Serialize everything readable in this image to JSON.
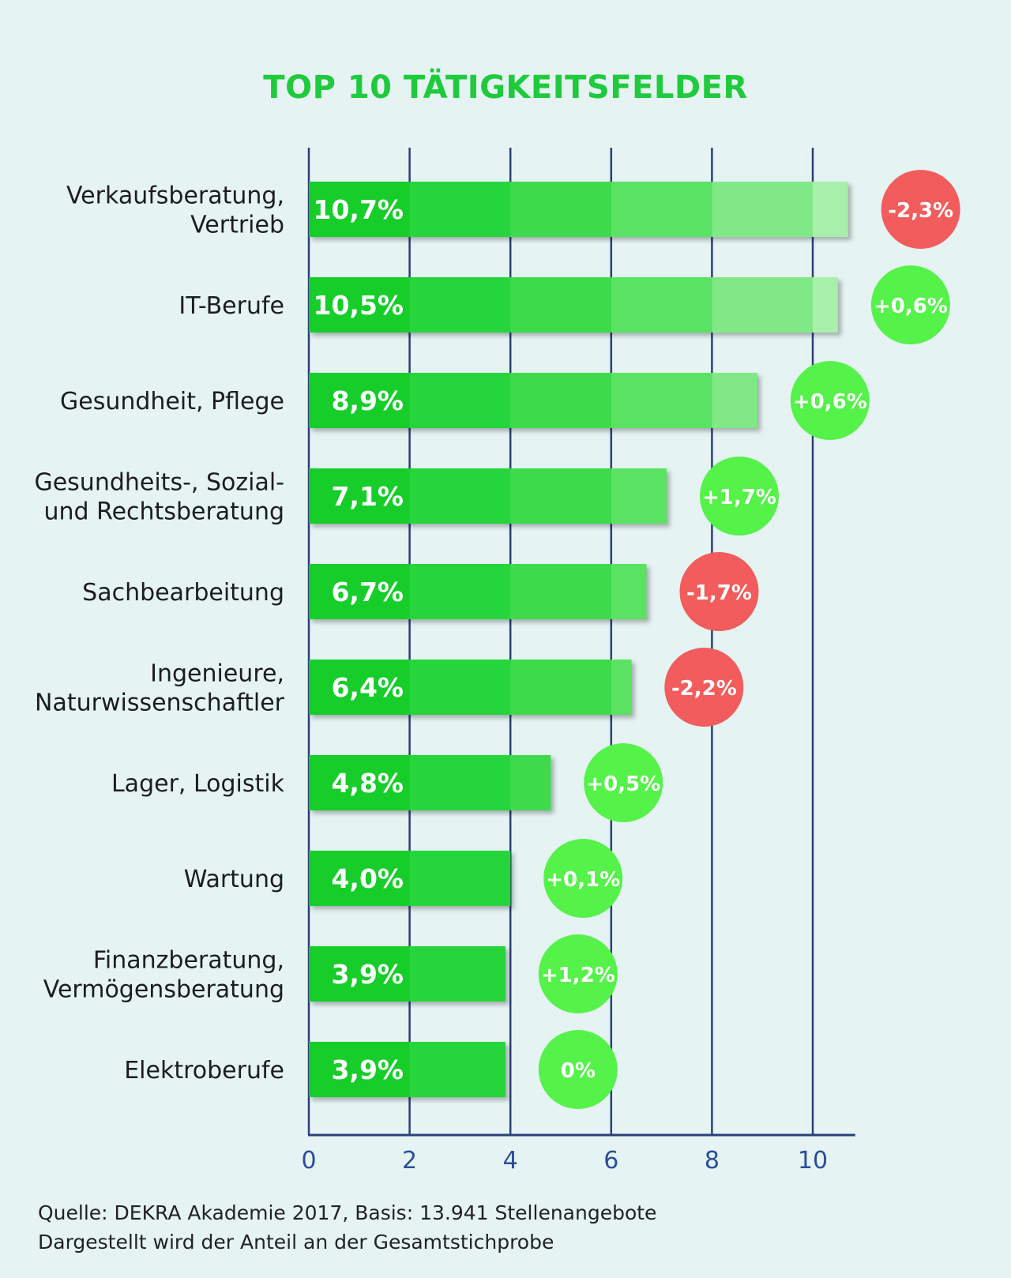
{
  "chart_data": {
    "type": "bar",
    "orientation": "horizontal",
    "title": "TOP 10 TÄTIGKEITSFELDER",
    "categories": [
      [
        "Verkaufsberatung,",
        "Vertrieb"
      ],
      [
        "IT-Berufe"
      ],
      [
        "Gesundheit, Pflege"
      ],
      [
        "Gesundheits-, Sozial-",
        "und Rechtsberatung"
      ],
      [
        "Sachbearbeitung"
      ],
      [
        "Ingenieure,",
        "Naturwissenschaftler"
      ],
      [
        "Lager, Logistik"
      ],
      [
        "Wartung"
      ],
      [
        "Finanzberatung,",
        "Vermögensberatung"
      ],
      [
        "Elektroberufe"
      ]
    ],
    "values": [
      10.7,
      10.5,
      8.9,
      7.1,
      6.7,
      6.4,
      4.8,
      4.0,
      3.9,
      3.9
    ],
    "value_labels": [
      "10,7%",
      "10,5%",
      "8,9%",
      "7,1%",
      "6,7%",
      "6,4%",
      "4,8%",
      "4,0%",
      "3,9%",
      "3,9%"
    ],
    "change_labels": [
      "-2,3%",
      "+0,6%",
      "+0,6%",
      "+1,7%",
      "-1,7%",
      "-2,2%",
      "+0,5%",
      "+0,1%",
      "+1,2%",
      "0%"
    ],
    "change_sign": [
      "negative",
      "positive",
      "positive",
      "positive",
      "negative",
      "negative",
      "positive",
      "positive",
      "positive",
      "positive"
    ],
    "xticks": [
      0,
      2,
      4,
      6,
      8,
      10
    ],
    "xlim": [
      0,
      11
    ],
    "grid": true,
    "colors": {
      "title": "#1fca3c",
      "bar_segments": [
        "#12cd2c",
        "#27d53a",
        "#3ddb4c",
        "#5ae264",
        "#80e985",
        "#a8f0aa"
      ],
      "positive": "#55f24a",
      "negative": "#f25c5c",
      "axis": "#2b3f7a",
      "tick_label": "#2b4d9a"
    }
  },
  "footer": {
    "source": "Quelle: DEKRA Akademie 2017, Basis: 13.941 Stellenangebote",
    "note": "Dargestellt wird der Anteil an der Gesamtstichprobe"
  }
}
